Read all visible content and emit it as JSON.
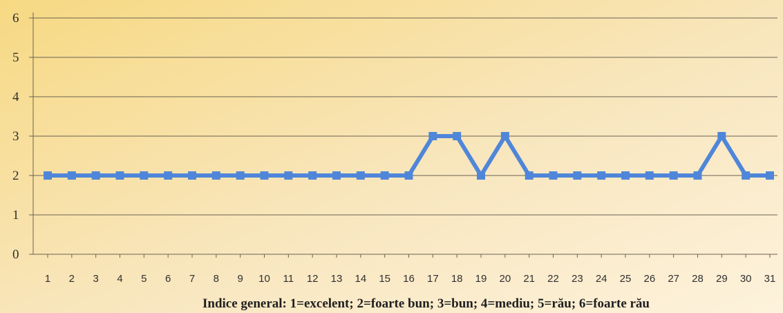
{
  "chart_data": {
    "type": "line",
    "xlabel": "Indice general: 1=excelent; 2=foarte bun; 3=bun; 4=mediu; 5=rău; 6=foarte rău",
    "ylabel": "",
    "ylim": [
      0,
      6
    ],
    "yticks": [
      "0",
      "1",
      "2",
      "3",
      "4",
      "5",
      "6"
    ],
    "categories": [
      "1",
      "2",
      "3",
      "4",
      "5",
      "6",
      "7",
      "8",
      "9",
      "10",
      "11",
      "12",
      "13",
      "14",
      "15",
      "16",
      "17",
      "18",
      "19",
      "20",
      "21",
      "22",
      "23",
      "24",
      "25",
      "26",
      "27",
      "28",
      "29",
      "30",
      "31"
    ],
    "series": [
      {
        "values": [
          2,
          2,
          2,
          2,
          2,
          2,
          2,
          2,
          2,
          2,
          2,
          2,
          2,
          2,
          2,
          2,
          3,
          3,
          2,
          3,
          2,
          2,
          2,
          2,
          2,
          2,
          2,
          2,
          3,
          2,
          2
        ],
        "color": "#4f86d9"
      }
    ],
    "grid": true,
    "legend": "none",
    "background_colors": [
      "#f5d27a",
      "#fff8e6"
    ]
  }
}
